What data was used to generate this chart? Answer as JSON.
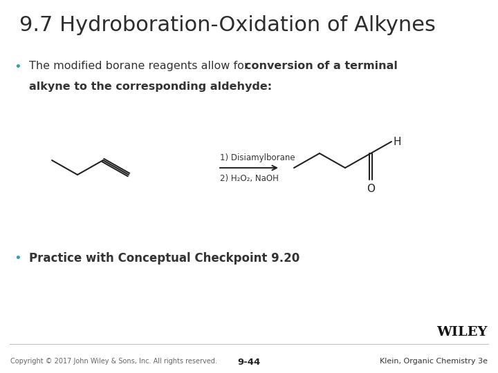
{
  "title": "9.7 Hydroboration-Oxidation of Alkynes",
  "title_color": "#2d2d2d",
  "title_fontsize": 22,
  "background_color": "#ffffff",
  "bullet_color": "#3a9fad",
  "bullet1_normal": "The modified borane reagents allow for ",
  "bullet1_bold": "conversion of a terminal",
  "bullet1_line2": "alkyne to the corresponding aldehyde:",
  "bullet2": "Practice with Conceptual Checkpoint 9.20",
  "reagent_line1": "1) Disiamylborane",
  "reagent_line2": "2) H₂O₂, NaOH",
  "footer_left": "Copyright © 2017 John Wiley & Sons, Inc. All rights reserved.",
  "footer_center": "9-44",
  "footer_right": "Klein, Organic Chemistry 3e",
  "wiley_text": "WILEY",
  "text_color": "#333333",
  "line_color": "#222222"
}
